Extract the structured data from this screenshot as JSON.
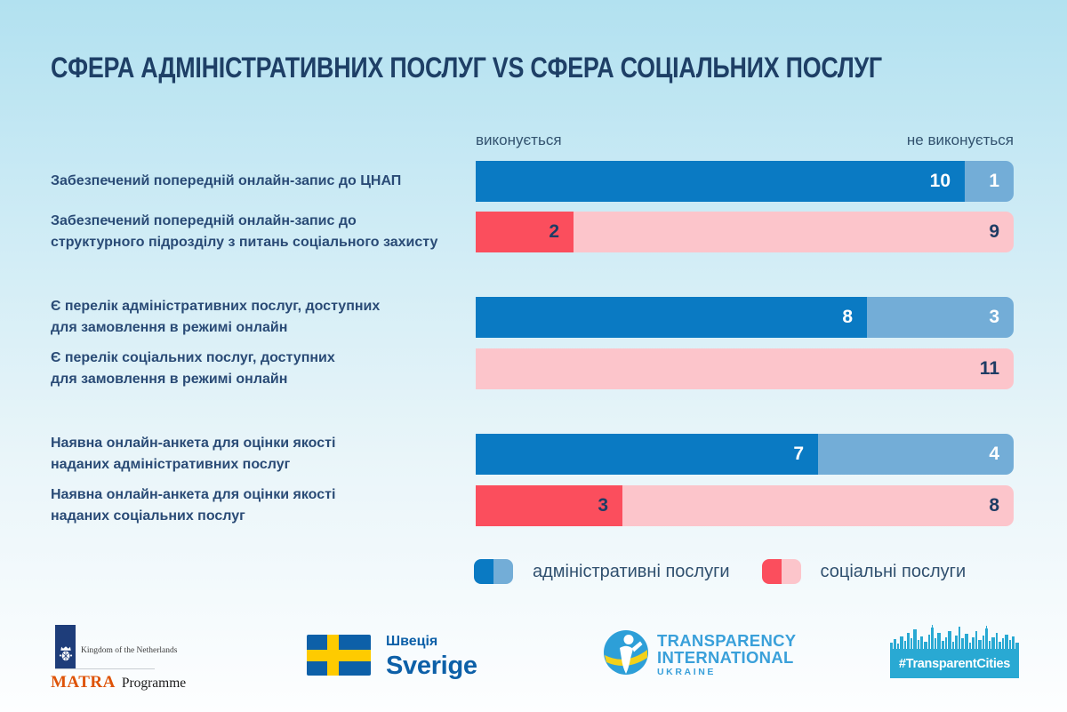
{
  "title": "СФЕРА АДМІНІСТРАТИВНИХ ПОСЛУГ VS СФЕРА СОЦІАЛЬНИХ ПОСЛУГ",
  "chart_data": {
    "type": "bar",
    "variant": "horizontal-stacked",
    "axis_max": 11,
    "column_headers": {
      "left": "виконується",
      "right": "не виконується"
    },
    "groups": [
      {
        "rows": [
          {
            "label_lines": [
              "Забезпечений попередній онлайн-запис до ЦНАП"
            ],
            "series": "admin",
            "done": 10,
            "not_done": 1
          },
          {
            "label_lines": [
              "Забезпечений попередній онлайн-запис до",
              "структурного підрозділу з питань соціального захисту"
            ],
            "series": "social",
            "done": 2,
            "not_done": 9
          }
        ]
      },
      {
        "rows": [
          {
            "label_lines": [
              "Є перелік адміністративних послуг, доступних",
              "для замовлення в режимі онлайн"
            ],
            "series": "admin",
            "done": 8,
            "not_done": 3
          },
          {
            "label_lines": [
              "Є перелік соціальних послуг, доступних",
              "для замовлення в режимі онлайн"
            ],
            "series": "social",
            "done": 0,
            "not_done": 11
          }
        ]
      },
      {
        "rows": [
          {
            "label_lines": [
              "Наявна онлайн-анкета для оцінки якості",
              "наданих адміністративних послуг"
            ],
            "series": "admin",
            "done": 7,
            "not_done": 4
          },
          {
            "label_lines": [
              "Наявна онлайн-анкета для оцінки якості",
              "наданих соціальних послуг"
            ],
            "series": "social",
            "done": 3,
            "not_done": 8
          }
        ]
      }
    ],
    "series_colors": {
      "admin": {
        "done": "#0a7ac3",
        "not_done": "#73add7",
        "value_text": "#ffffff"
      },
      "social": {
        "done": "#fb4e5d",
        "not_done": "#fcc5cb",
        "value_text": "#1e3c64"
      }
    },
    "legend": [
      {
        "label": "адміністративні послуги",
        "done_color": "#0a7ac3",
        "not_done_color": "#73add7"
      },
      {
        "label": "соціальні послуги",
        "done_color": "#fb4e5d",
        "not_done_color": "#fcc5cb"
      }
    ]
  },
  "footer": {
    "netherlands": {
      "kingdom": "Kingdom of the Netherlands",
      "matra": "MATRA",
      "programme": "Programme"
    },
    "sweden": {
      "uk_name": "Швеція",
      "sv_name": "Sverige"
    },
    "transparency": {
      "line1": "TRANSPARENCY",
      "line2": "INTERNATIONAL",
      "line3": "UKRAINE"
    },
    "transparent_cities": {
      "label": "#TransparentCities"
    }
  },
  "colors": {
    "background_top": "#b2e1f0",
    "background_bottom": "#fdfeff",
    "title_text": "#1e3f66",
    "label_text": "#2a4b76",
    "value_dark_text": "#1e3c64",
    "nl_ribbon": "#1e3d7a",
    "matra_orange": "#de5307",
    "sweden_blue": "#0d60a8",
    "sweden_yellow": "#fecb00",
    "ti_blue": "#3aa0da",
    "tc_cyan": "#29a9d3"
  }
}
